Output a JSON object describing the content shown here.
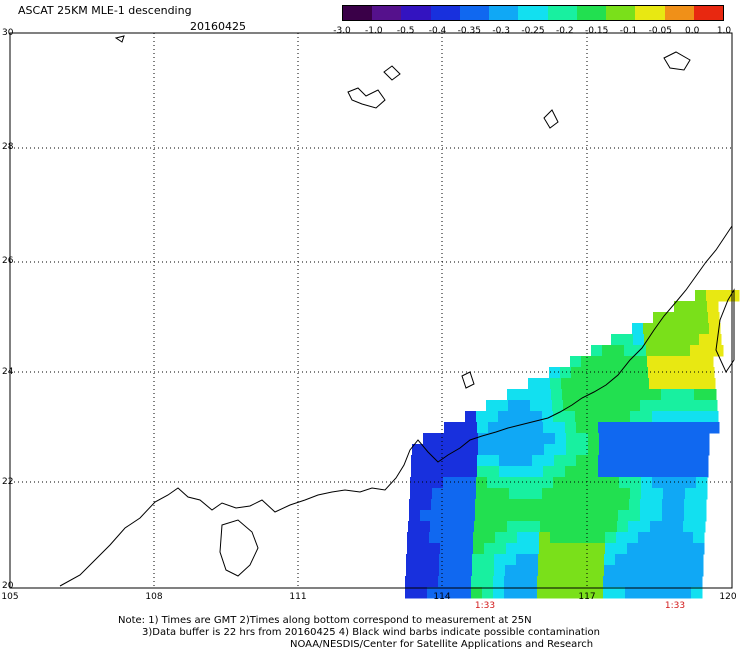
{
  "header": {
    "title": "ASCAT 25KM MLE-1 descending",
    "date": "20160425"
  },
  "colorbar": {
    "labels": [
      "-3.0",
      "-1.0",
      "-0.5",
      "-0.4",
      "-0.35",
      "-0.3",
      "-0.25",
      "-0.2",
      "-0.15",
      "-0.1",
      "-0.05",
      "0.0",
      "1.0"
    ],
    "colors": [
      "#3a0048",
      "#55118c",
      "#3313c0",
      "#1830dd",
      "#1068f0",
      "#10a8f5",
      "#12e0f0",
      "#18f0a0",
      "#22e050",
      "#7ae01a",
      "#e8e812",
      "#f09018",
      "#e82810"
    ]
  },
  "map": {
    "y_ticks": [
      "30",
      "28",
      "26",
      "24",
      "22",
      "20"
    ],
    "x_ticks": [
      "105",
      "108",
      "111",
      "114",
      "117",
      "120"
    ],
    "pass_times": [
      "1:33",
      "1:33"
    ]
  },
  "notes": {
    "line1": "Note: 1) Times are GMT 2)Times along bottom correspond to measurement at 25N",
    "line2": "3)Data buffer is 22 hrs from 20160425 4) Black wind barbs indicate possible contamination",
    "line3": "NOAA/NESDIS/Center for Satellite Applications and Research"
  }
}
